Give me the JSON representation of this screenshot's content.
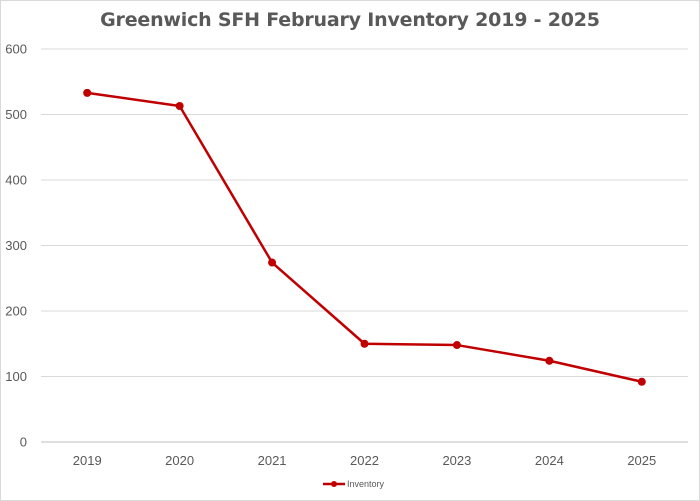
{
  "chart_data": {
    "type": "line",
    "title": "Greenwich SFH February Inventory 2019 - 2025",
    "categories": [
      "2019",
      "2020",
      "2021",
      "2022",
      "2023",
      "2024",
      "2025"
    ],
    "series": [
      {
        "name": "Inventory",
        "values": [
          533,
          513,
          274,
          150,
          148,
          124,
          92
        ],
        "color": "#c00000"
      }
    ],
    "xlabel": "",
    "ylabel": "",
    "ylim": [
      0,
      600
    ],
    "yticks": [
      "0",
      "100",
      "200",
      "300",
      "400",
      "500",
      "600"
    ],
    "grid": true,
    "legend_position": "bottom"
  }
}
